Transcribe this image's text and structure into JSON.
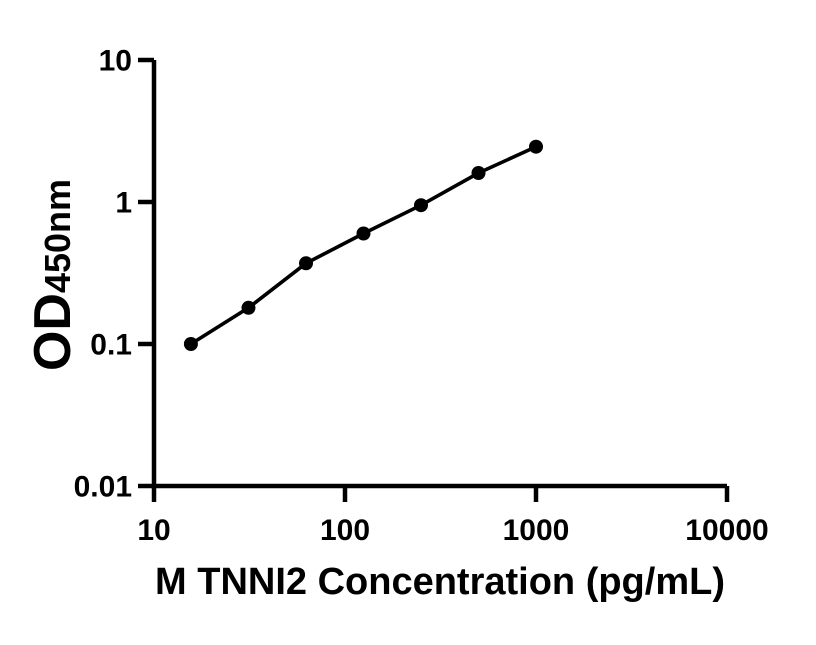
{
  "figure": {
    "background_color": "#ffffff",
    "foreground_color": "#000000"
  },
  "chart_data": {
    "type": "scatter",
    "title": "",
    "xlabel": "M TNNI2 Concentration (pg/mL)",
    "ylabel": "OD",
    "ylabel_subscript": "450nm",
    "x_scale": "log10",
    "y_scale": "log10",
    "xlim": [
      10,
      10000
    ],
    "ylim": [
      0.01,
      10
    ],
    "x_ticks": [
      10,
      100,
      1000,
      10000
    ],
    "x_tick_labels": [
      "10",
      "100",
      "1000",
      "10000"
    ],
    "y_ticks": [
      0.01,
      0.1,
      1,
      10
    ],
    "y_tick_labels": [
      "0.01",
      "0.1",
      "1",
      "10"
    ],
    "grid": false,
    "legend": false,
    "series": [
      {
        "marker": "filled-circle",
        "marker_color": "#000000",
        "line_color": "#000000",
        "connected": true,
        "points": [
          {
            "x": 15.6,
            "y": 0.1
          },
          {
            "x": 31.25,
            "y": 0.18
          },
          {
            "x": 62.5,
            "y": 0.37
          },
          {
            "x": 125,
            "y": 0.6
          },
          {
            "x": 250,
            "y": 0.95
          },
          {
            "x": 500,
            "y": 1.6
          },
          {
            "x": 1000,
            "y": 2.45
          }
        ]
      }
    ]
  }
}
